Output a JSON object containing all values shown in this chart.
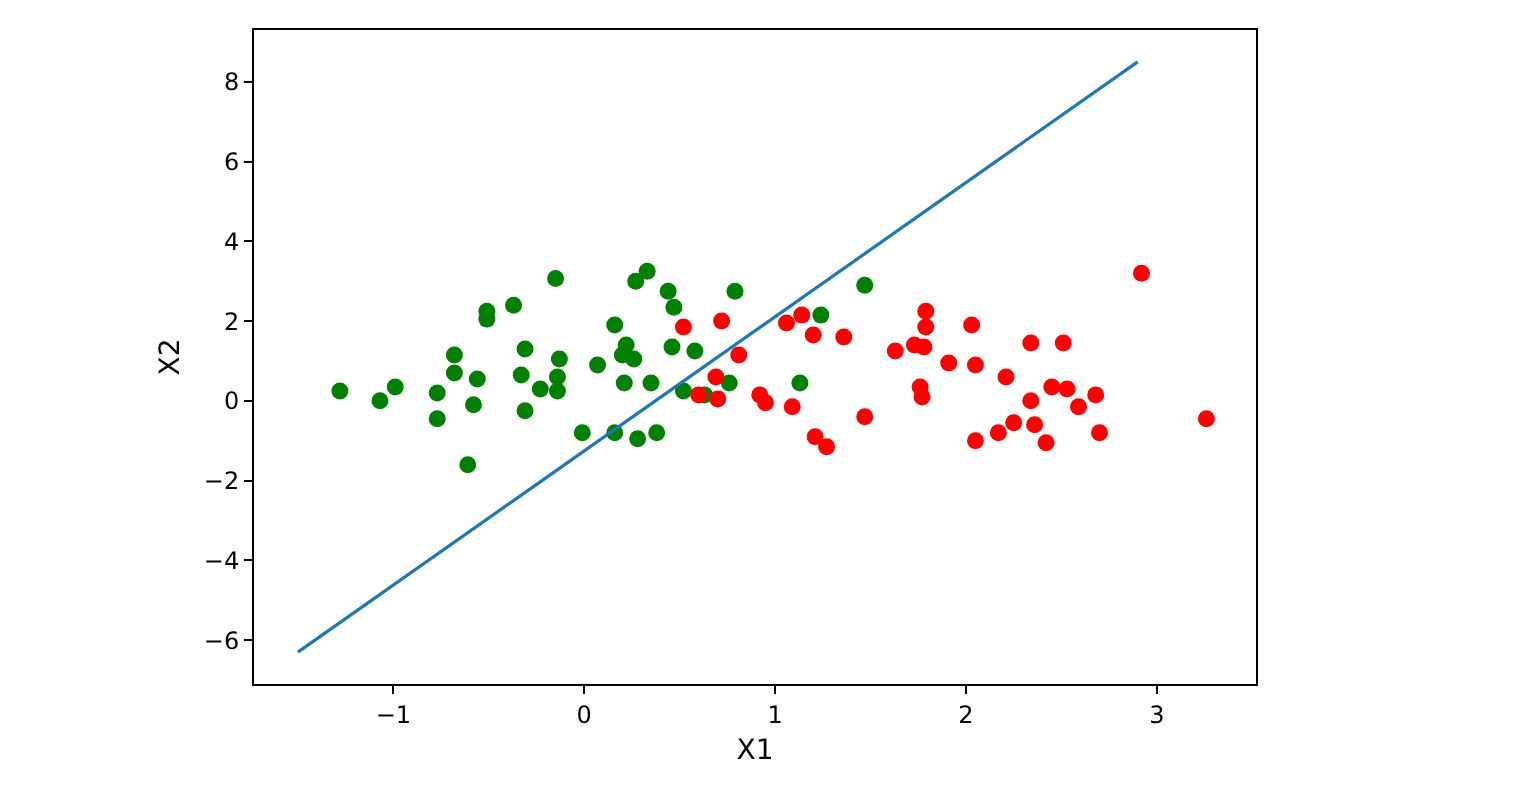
{
  "chart_data": {
    "type": "scatter",
    "xlabel": "X1",
    "ylabel": "X2",
    "xlim": [
      -1.73,
      3.52
    ],
    "ylim": [
      -7.1,
      9.3
    ],
    "xticks": [
      {
        "value": -1,
        "label": "−1"
      },
      0,
      1,
      2,
      3
    ],
    "yticks": [
      {
        "value": -6,
        "label": "−6"
      },
      {
        "value": -4,
        "label": "−4"
      },
      {
        "value": -2,
        "label": "−2"
      },
      0,
      2,
      4,
      6,
      8
    ],
    "grid": false,
    "marker": "circle",
    "series": [
      {
        "color": "#008000",
        "x": [
          -1.28,
          -1.07,
          -0.99,
          -0.77,
          -0.77,
          -0.68,
          -0.68,
          -0.61,
          -0.58,
          -0.56,
          -0.51,
          -0.51,
          -0.37,
          -0.31,
          -0.33,
          -0.31,
          -0.23,
          -0.15,
          -0.13,
          -0.14,
          -0.14,
          -0.01,
          0.07,
          0.16,
          0.16,
          0.2,
          0.22,
          0.26,
          0.21,
          0.28,
          0.38,
          0.35,
          0.27,
          0.33,
          0.44,
          0.47,
          0.46,
          0.58,
          0.79,
          1.47,
          1.24,
          1.13,
          0.52,
          0.63,
          0.76
        ],
        "values": [
          0.25,
          0,
          0.35,
          0.2,
          -0.45,
          1.15,
          0.7,
          -1.6,
          -0.1,
          0.55,
          2.25,
          2.05,
          2.4,
          1.3,
          0.65,
          -0.25,
          0.3,
          3.07,
          1.05,
          0.6,
          0.25,
          -0.8,
          0.9,
          1.9,
          -0.8,
          1.15,
          1.4,
          1.05,
          0.45,
          -0.95,
          -0.8,
          0.45,
          3.0,
          3.25,
          2.75,
          2.35,
          1.35,
          1.25,
          2.75,
          2.9,
          2.15,
          0.45,
          0.25,
          0.15,
          0.45
        ]
      },
      {
        "color": "#ff0000",
        "x": [
          0.52,
          0.72,
          0.81,
          0.69,
          0.7,
          0.6,
          0.92,
          0.95,
          1.09,
          1.06,
          1.14,
          1.2,
          1.36,
          1.21,
          1.27,
          1.47,
          1.63,
          1.73,
          1.79,
          1.79,
          1.78,
          1.76,
          1.77,
          1.91,
          2.03,
          2.05,
          2.05,
          2.92,
          3.26,
          2.34,
          2.51,
          2.21,
          2.45,
          2.53,
          2.34,
          2.68,
          2.59,
          2.17,
          2.25,
          2.36,
          2.42,
          2.7
        ],
        "values": [
          1.85,
          2.0,
          1.15,
          0.6,
          0.05,
          0.15,
          0.15,
          -0.05,
          -0.15,
          1.95,
          2.15,
          1.65,
          1.6,
          -0.9,
          -1.15,
          -0.4,
          1.25,
          1.4,
          2.25,
          1.85,
          1.35,
          0.35,
          0.1,
          0.95,
          1.9,
          0.9,
          -1.0,
          3.2,
          -0.45,
          1.45,
          1.45,
          0.6,
          0.35,
          0.3,
          0.0,
          0.15,
          -0.15,
          -0.8,
          -0.55,
          -0.6,
          -1.05,
          -0.8
        ]
      },
      {
        "type": "line",
        "color": "#1f77b4",
        "marker": "none",
        "line_style": "solid",
        "x": [
          -1.5,
          2.9
        ],
        "values": [
          -6.3,
          8.5
        ]
      }
    ]
  }
}
